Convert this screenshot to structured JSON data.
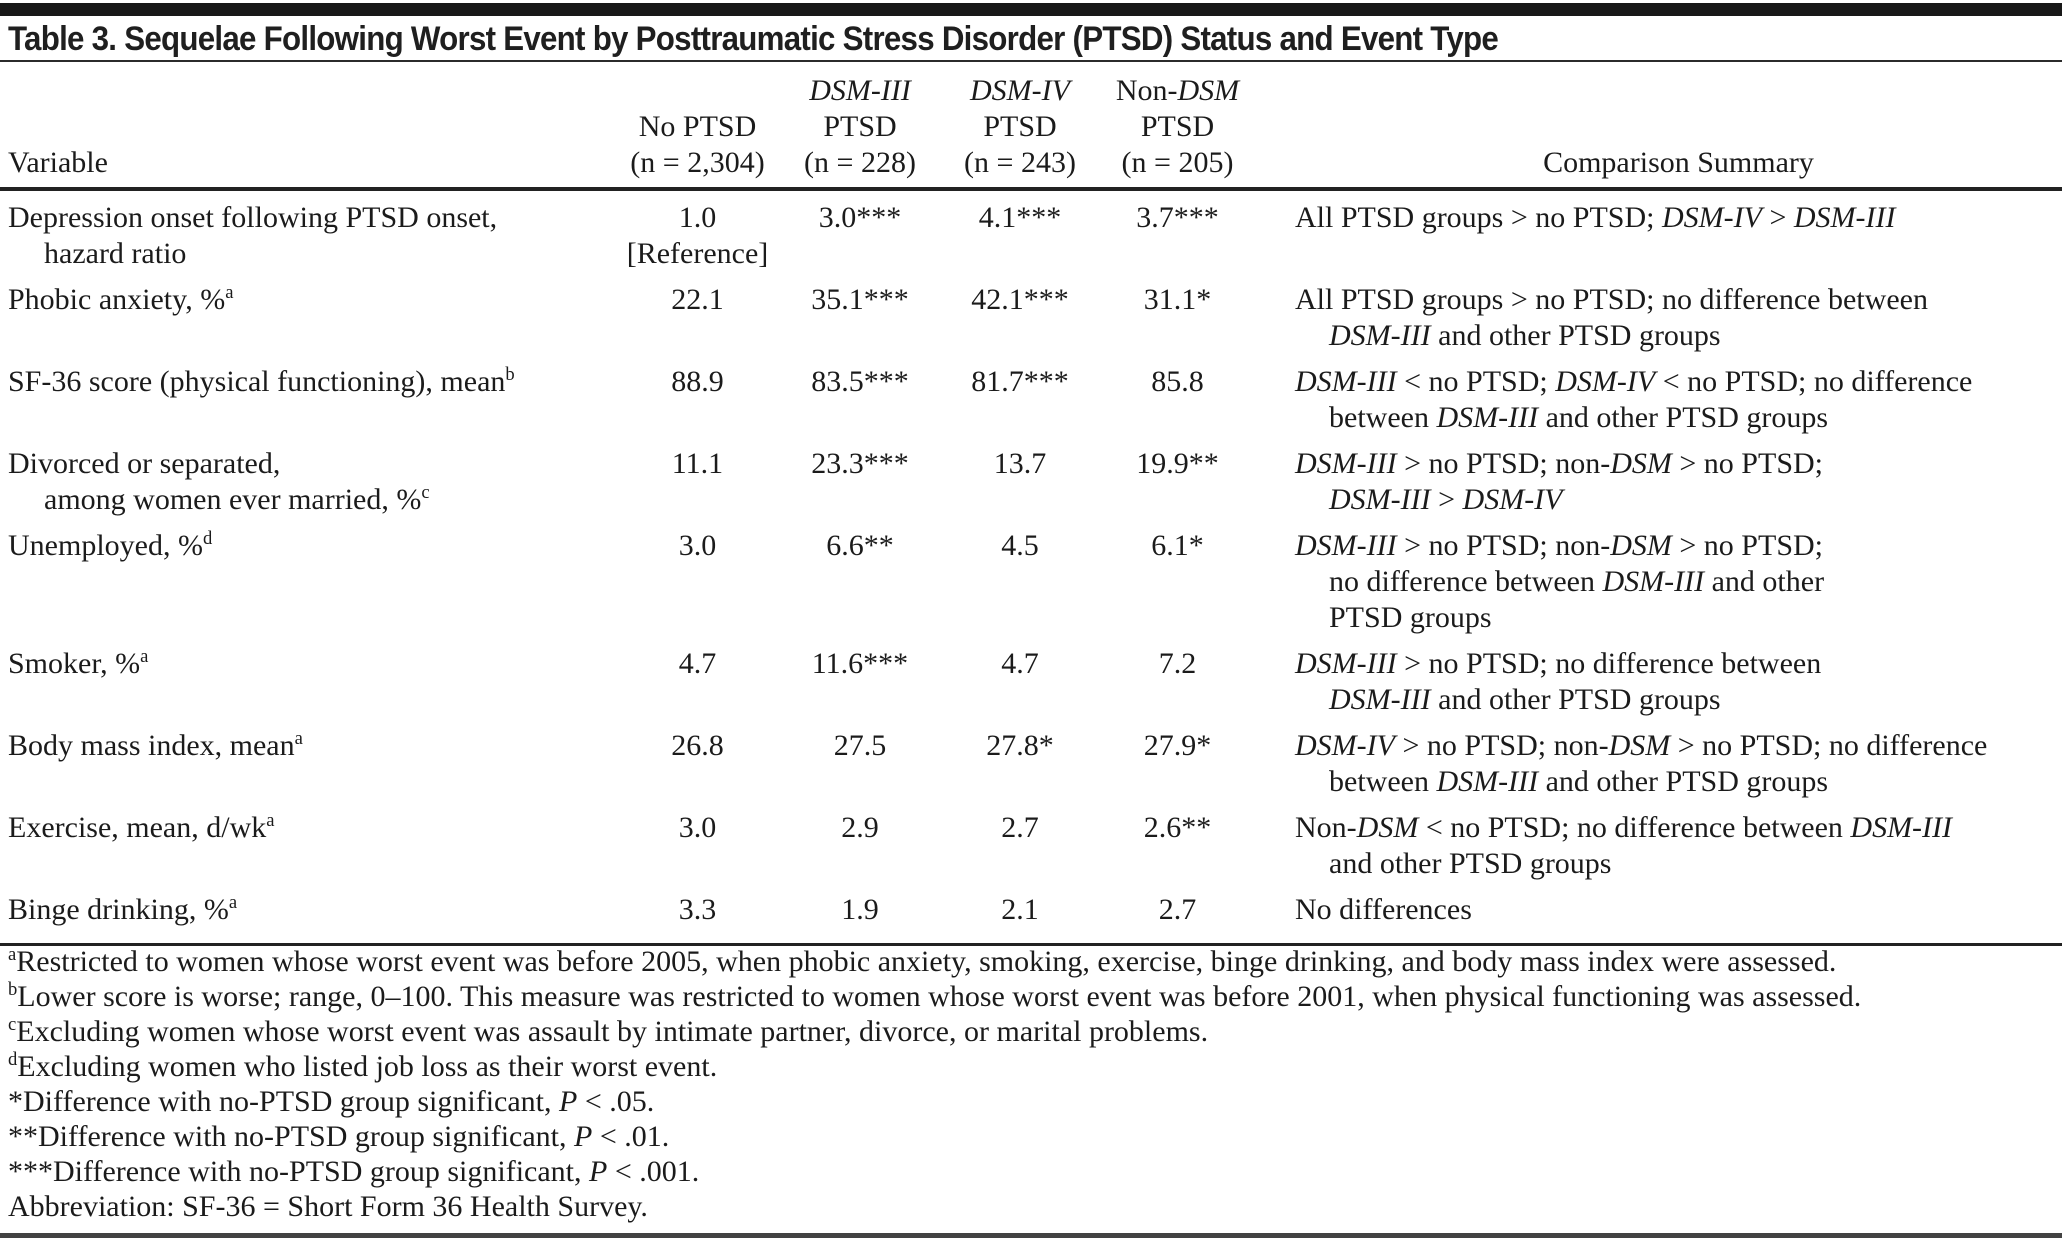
{
  "title": "Table 3. Sequelae Following Worst Event by Posttraumatic Stress Disorder (PTSD) Status and Event Type",
  "colors": {
    "top_bar": "#181818",
    "rules": "#222222",
    "text": "#1b1b1b",
    "background": "#ffffff"
  },
  "table": {
    "header": {
      "variable_label": "Variable",
      "comparison_label": "Comparison Summary",
      "columns": [
        {
          "lines": [
            "No PTSD",
            "(n = 2,304)"
          ]
        },
        {
          "lines": [
            "{i}DSM-III{/i}",
            "PTSD",
            "(n = 228)"
          ]
        },
        {
          "lines": [
            "{i}DSM-IV{/i}",
            "PTSD",
            "(n = 243)"
          ]
        },
        {
          "lines": [
            "Non-{i}DSM{/i}",
            "PTSD",
            "(n = 205)"
          ]
        }
      ]
    },
    "rows": [
      {
        "variable": "Depression onset following PTSD onset,{br}hazard ratio",
        "values": [
          "1.0{br}[Reference]",
          "3.0***",
          "4.1***",
          "3.7***"
        ],
        "comparison": "All PTSD groups > no PTSD; {i}DSM-IV{/i} > {i}DSM-III{/i}"
      },
      {
        "variable": "Phobic anxiety, %{sup}a{/sup}",
        "values": [
          "22.1",
          "35.1***",
          "42.1***",
          "31.1*"
        ],
        "comparison": "All PTSD groups > no PTSD; no difference between{br}{i}DSM-III{/i} and other PTSD groups"
      },
      {
        "variable": "SF-36 score (physical functioning), mean{sup}b{/sup}",
        "values": [
          "88.9",
          "83.5***",
          "81.7***",
          "85.8"
        ],
        "comparison": "{i}DSM-III{/i} < no PTSD; {i}DSM-IV{/i} < no PTSD; no difference{br}between {i}DSM-III{/i} and other PTSD groups"
      },
      {
        "variable": "Divorced or separated,{br}among women ever married, %{sup}c{/sup}",
        "values": [
          "11.1",
          "23.3***",
          "13.7",
          "19.9**"
        ],
        "comparison": "{i}DSM-III{/i} > no PTSD; non-{i}DSM{/i} > no PTSD;{br}{i}DSM-III{/i} > {i}DSM-IV{/i}"
      },
      {
        "variable": "Unemployed, %{sup}d{/sup}",
        "values": [
          "3.0",
          "6.6**",
          "4.5",
          "6.1*"
        ],
        "comparison": "{i}DSM-III{/i} > no PTSD; non-{i}DSM{/i} > no PTSD;{br}no difference between {i}DSM-III{/i} and other{br}PTSD groups"
      },
      {
        "variable": "Smoker, %{sup}a{/sup}",
        "values": [
          "4.7",
          "11.6***",
          "4.7",
          "7.2"
        ],
        "comparison": "{i}DSM-III{/i} > no PTSD; no difference between{br}{i}DSM-III{/i} and other PTSD groups"
      },
      {
        "variable": "Body mass index, mean{sup}a{/sup}",
        "values": [
          "26.8",
          "27.5",
          "27.8*",
          "27.9*"
        ],
        "comparison": "{i}DSM-IV{/i} > no PTSD; non-{i}DSM{/i} > no PTSD; no difference{br}between {i}DSM-III{/i} and other PTSD groups"
      },
      {
        "variable": "Exercise, mean, d/wk{sup}a{/sup}",
        "values": [
          "3.0",
          "2.9",
          "2.7",
          "2.6**"
        ],
        "comparison": "Non-{i}DSM{/i} < no PTSD; no difference between {i}DSM-III{/i}{br}and other PTSD groups"
      },
      {
        "variable": "Binge drinking, %{sup}a{/sup}",
        "values": [
          "3.3",
          "1.9",
          "2.1",
          "2.7"
        ],
        "comparison": "No differences"
      }
    ]
  },
  "footnotes": [
    "{sup}a{/sup}Restricted to women whose worst event was before 2005, when phobic anxiety, smoking, exercise, binge drinking, and body mass index were assessed.",
    "{sup}b{/sup}Lower score is worse; range, 0–100. This measure was restricted to women whose worst event was before 2001, when physical functioning was assessed.",
    "{sup}c{/sup}Excluding women whose worst event was assault by intimate partner, divorce, or marital problems.",
    "{sup}d{/sup}Excluding women who listed job loss as their worst event.",
    "*Difference with no-PTSD group significant, {i}P{/i} < .05.",
    "**Difference with no-PTSD group significant, {i}P{/i} < .01.",
    "***Difference with no-PTSD group significant, {i}P{/i} < .001.",
    "Abbreviation: SF-36 = Short Form 36 Health Survey."
  ]
}
